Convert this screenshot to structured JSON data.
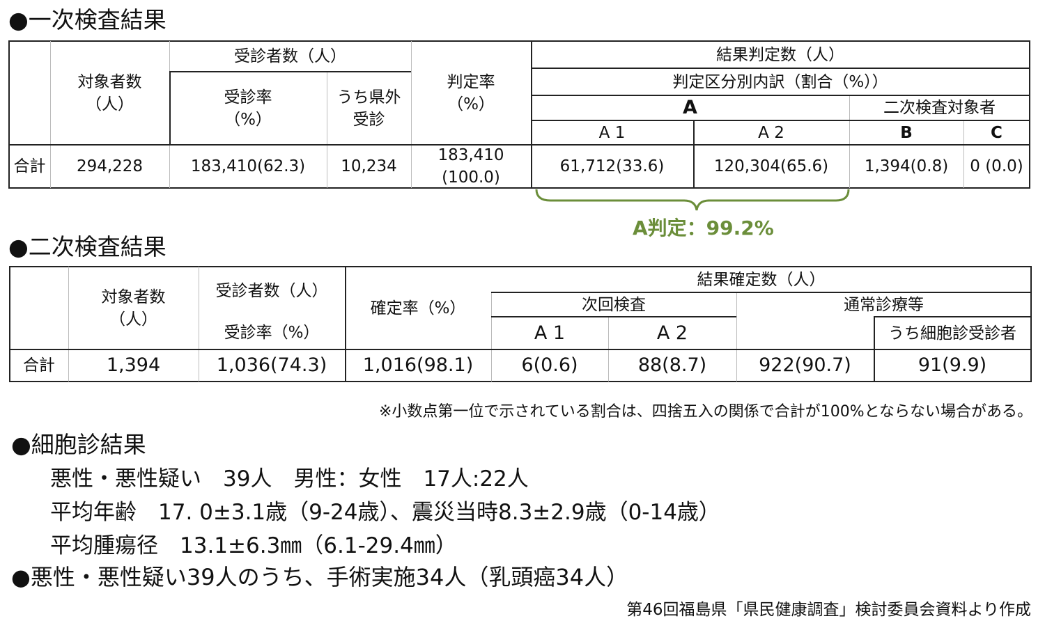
{
  "section1": {
    "title": "●一次検査結果",
    "headers": {
      "target": "対象者数\n（人）",
      "examinees": "受診者数（人）",
      "rate": "受診率\n（%）",
      "outside": "うち県外\n受診",
      "judge_rate": "判定率\n（%）",
      "results": "結果判定数（人）",
      "breakdown": "判定区分別内訳（割合（%））",
      "A": "A",
      "second_target": "二次検査対象者",
      "A1": "A 1",
      "A2": "A 2",
      "B": "B",
      "C": "C"
    },
    "row": {
      "label": "合計",
      "target": "294,228",
      "examinees": "183,410(62.3)",
      "outside": "10,234",
      "judged": "183,410\n(100.0)",
      "A1": "61,712(33.6)",
      "A2": "120,304(65.6)",
      "B": "1,394(0.8)",
      "C": "0 (0.0)"
    },
    "brace_label": "A判定：99.2%",
    "brace_color": "#6b8e3a"
  },
  "section2": {
    "title": "●二次検査結果",
    "headers": {
      "target": "対象者数\n（人）",
      "examinees": "受診者数（人）",
      "rate": "受診率（%）",
      "confirm_rate": "確定率（%）",
      "results": "結果確定数（人）",
      "next": "次回検査",
      "regular": "通常診療等",
      "A1": "A 1",
      "A2": "A 2",
      "cytology": "うち細胞診受診者"
    },
    "row": {
      "label": "合計",
      "target": "1,394",
      "examinees": "1,036(74.3)",
      "confirmed": "1,016(98.1)",
      "A1": "6(0.6)",
      "A2": "88(8.7)",
      "regular": "922(90.7)",
      "cytology": "91(9.9)"
    },
    "note": "※小数点第一位で示されている割合は、四捨五入の関係で合計が100%とならない場合がある。"
  },
  "section3": {
    "title": "●細胞診結果",
    "lines": [
      "悪性・悪性疑い　39人　男性：女性　17人:22人",
      "平均年齢　17. 0±3.1歳（9-24歳）、震災当時8.3±2.9歳（0-14歳）",
      "平均腫瘍径　13.1±6.3㎜（6.1-29.4㎜）"
    ]
  },
  "section4": {
    "title": "●悪性・悪性疑い39人のうち、手術実施34人（乳頭癌34人）"
  },
  "source": "第46回福島県「県民健康調査」検討委員会資料より作成"
}
